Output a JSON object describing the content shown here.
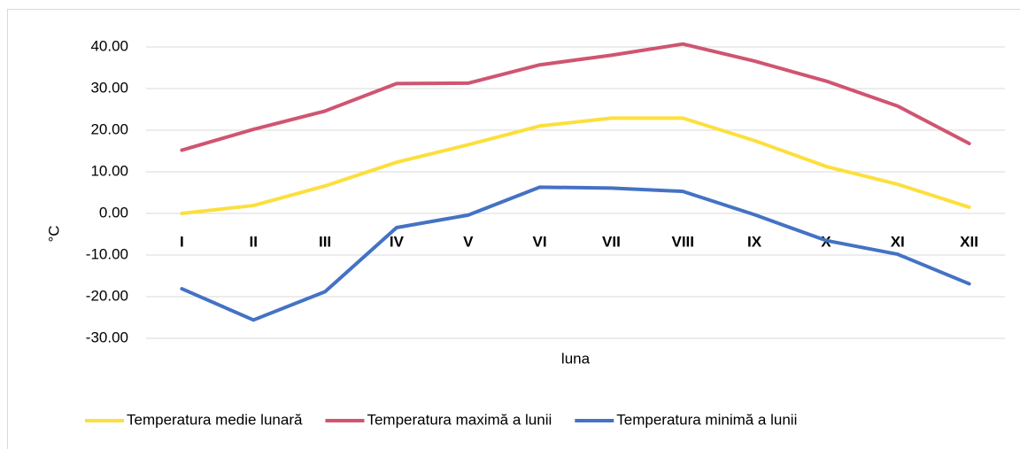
{
  "chart_data": {
    "type": "line",
    "categories": [
      "I",
      "II",
      "III",
      "IV",
      "V",
      "VI",
      "VII",
      "VIII",
      "IX",
      "X",
      "XI",
      "XII"
    ],
    "series": [
      {
        "name": "Temperatura medie lunară",
        "color": "#fcdf3c",
        "values": [
          0,
          1.9,
          6.6,
          12.3,
          16.5,
          21,
          22.9,
          22.9,
          17.5,
          11.3,
          7,
          1.5
        ]
      },
      {
        "name": "Temperatura maximă a lunii",
        "color": "#cf5571",
        "values": [
          15.2,
          20.2,
          24.6,
          31.2,
          31.3,
          35.7,
          38,
          40.7,
          36.6,
          31.8,
          25.8,
          16.8
        ]
      },
      {
        "name": "Temperatura minimă a lunii",
        "color": "#4472c4",
        "values": [
          -18.1,
          -25.6,
          -18.8,
          -3.4,
          -0.4,
          6.3,
          6.1,
          5.3,
          -0.3,
          -6.5,
          -9.8,
          -16.9
        ]
      }
    ],
    "ylabel": "°C",
    "xlabel": "luna",
    "ylim": [
      -30,
      40
    ],
    "yticks": [
      {
        "value": -30,
        "label": "-30.00"
      },
      {
        "value": -20,
        "label": "-20.00"
      },
      {
        "value": -10,
        "label": "-10.00"
      },
      {
        "value": 0,
        "label": "0.00"
      },
      {
        "value": 10,
        "label": "10.00"
      },
      {
        "value": 20,
        "label": "20.00"
      },
      {
        "value": 30,
        "label": "30.00"
      },
      {
        "value": 40,
        "label": "40.00"
      }
    ],
    "grid": true,
    "legend": "bottom"
  }
}
